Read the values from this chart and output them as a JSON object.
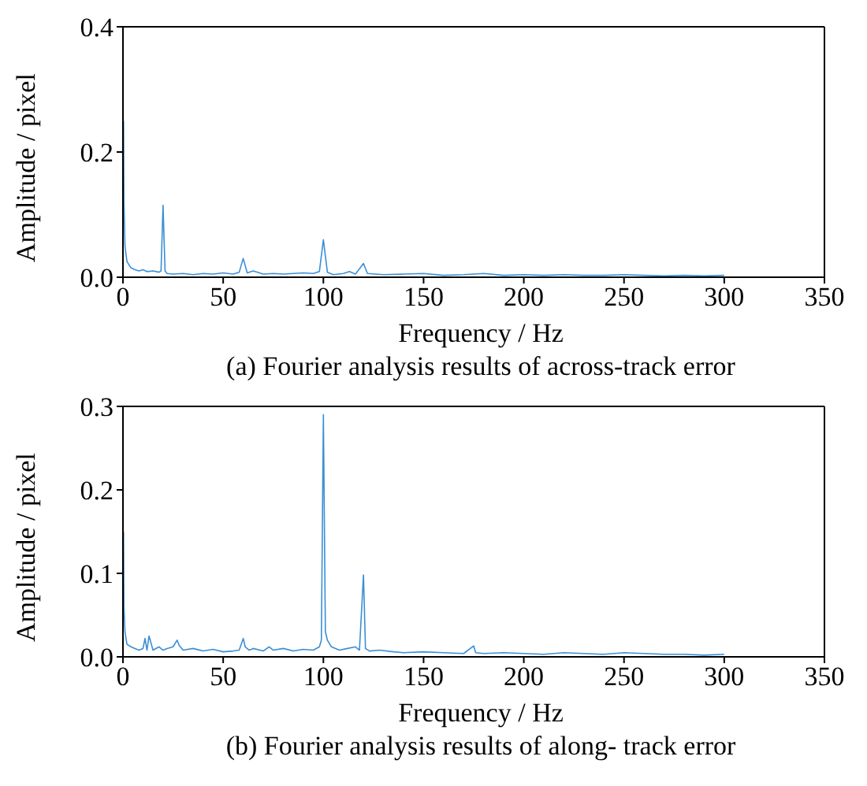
{
  "chart_data": [
    {
      "type": "line",
      "title": "(a) Fourier analysis results of across-track error",
      "xlabel": "Frequency / Hz",
      "ylabel": "Amplitude / pixel",
      "xlim": [
        0,
        350
      ],
      "xticks": [
        0,
        50,
        100,
        150,
        200,
        250,
        300,
        350
      ],
      "ylim": [
        0,
        0.4
      ],
      "yticks": [
        {
          "value": 0,
          "label": "0.0"
        },
        0.2,
        0.4
      ],
      "x": [
        0.3,
        0.5,
        1,
        2,
        4,
        6,
        8,
        10,
        12,
        15,
        18,
        19,
        20,
        21,
        22,
        25,
        30,
        35,
        40,
        45,
        50,
        55,
        58,
        60,
        62,
        65,
        70,
        75,
        80,
        85,
        90,
        95,
        98,
        100,
        102,
        105,
        110,
        113,
        116,
        120,
        122,
        130,
        140,
        150,
        160,
        170,
        180,
        190,
        200,
        210,
        220,
        230,
        240,
        250,
        260,
        270,
        280,
        290,
        300
      ],
      "series": [
        {
          "color": "#3a8fd6",
          "values": [
            0.25,
            0.12,
            0.05,
            0.025,
            0.015,
            0.012,
            0.01,
            0.012,
            0.009,
            0.01,
            0.008,
            0.01,
            0.115,
            0.01,
            0.006,
            0.005,
            0.006,
            0.004,
            0.006,
            0.005,
            0.007,
            0.005,
            0.008,
            0.03,
            0.007,
            0.01,
            0.005,
            0.006,
            0.005,
            0.006,
            0.007,
            0.006,
            0.009,
            0.06,
            0.008,
            0.004,
            0.006,
            0.009,
            0.005,
            0.022,
            0.006,
            0.004,
            0.005,
            0.006,
            0.003,
            0.004,
            0.006,
            0.003,
            0.004,
            0.003,
            0.004,
            0.003,
            0.003,
            0.004,
            0.003,
            0.002,
            0.003,
            0.002,
            0.003
          ]
        }
      ]
    },
    {
      "type": "line",
      "title": "(b) Fourier analysis results of along- track error",
      "xlabel": "Frequency / Hz",
      "ylabel": "Amplitude / pixel",
      "xlim": [
        0,
        350
      ],
      "xticks": [
        0,
        50,
        100,
        150,
        200,
        250,
        300,
        350
      ],
      "ylim": [
        0,
        0.3
      ],
      "yticks": [
        {
          "value": 0,
          "label": "0.0"
        },
        0.1,
        0.2,
        0.3
      ],
      "x": [
        0.3,
        0.5,
        1,
        2,
        4,
        6,
        8,
        10,
        11,
        12,
        13,
        15,
        18,
        20,
        22,
        25,
        27,
        28,
        30,
        35,
        40,
        45,
        50,
        55,
        58,
        60,
        61,
        63,
        65,
        70,
        73,
        75,
        80,
        85,
        90,
        95,
        98,
        99,
        100,
        100.5,
        101,
        102,
        104,
        108,
        112,
        116,
        118,
        120,
        121,
        123,
        128,
        135,
        140,
        150,
        160,
        170,
        175,
        176,
        180,
        190,
        200,
        210,
        220,
        230,
        240,
        250,
        260,
        270,
        280,
        290,
        300
      ],
      "series": [
        {
          "color": "#3a8fd6",
          "values": [
            0.15,
            0.06,
            0.03,
            0.015,
            0.012,
            0.01,
            0.008,
            0.01,
            0.022,
            0.008,
            0.025,
            0.008,
            0.012,
            0.008,
            0.01,
            0.012,
            0.02,
            0.014,
            0.008,
            0.01,
            0.007,
            0.009,
            0.006,
            0.007,
            0.008,
            0.022,
            0.012,
            0.008,
            0.01,
            0.007,
            0.012,
            0.008,
            0.01,
            0.007,
            0.009,
            0.008,
            0.012,
            0.02,
            0.29,
            0.16,
            0.03,
            0.02,
            0.012,
            0.008,
            0.01,
            0.012,
            0.008,
            0.098,
            0.01,
            0.007,
            0.008,
            0.006,
            0.005,
            0.006,
            0.005,
            0.004,
            0.013,
            0.005,
            0.004,
            0.005,
            0.004,
            0.003,
            0.005,
            0.004,
            0.003,
            0.005,
            0.004,
            0.003,
            0.003,
            0.002,
            0.003
          ]
        }
      ]
    }
  ]
}
